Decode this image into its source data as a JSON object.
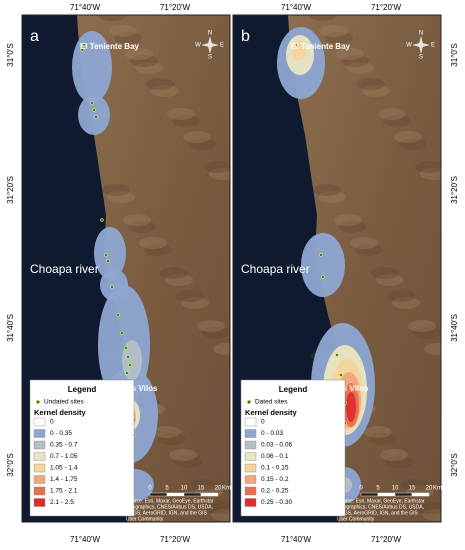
{
  "lon_labels": [
    "71°40'W",
    "71°20'W"
  ],
  "lat_labels": [
    "31°0'S",
    "31°20'S",
    "31°40'S",
    "32°0'S"
  ],
  "compass": {
    "n": "N",
    "s": "S",
    "e": "E",
    "w": "W"
  },
  "places": {
    "bay": "El Teniente Bay",
    "river": "Choapa river",
    "town": "Los Vilos"
  },
  "scale": {
    "ticks": [
      "0",
      "5",
      "10",
      "15",
      "20"
    ],
    "unit": "Km"
  },
  "source": [
    "Source: Esri, Maxar, GeoEye, Earthstar",
    "Geographics, CNES/Airbus DS, USDA,",
    "USGS, AeroGRID, IGN, and the GIS",
    "User Community"
  ],
  "panels": [
    {
      "label": "a",
      "legend": {
        "title": "Legend",
        "sites": "Undated sites",
        "density_title": "Kernel density",
        "classes": [
          {
            "label": "0",
            "color": "#ffffff"
          },
          {
            "label": "0 - 0.35",
            "color": "#8ea6d2"
          },
          {
            "label": "0.35 - 0.7",
            "color": "#b3c0c4"
          },
          {
            "label": "0.7 - 1.05",
            "color": "#e9e6bf"
          },
          {
            "label": "1.05 - 1.4",
            "color": "#f6d49c"
          },
          {
            "label": "1.4 - 1.75",
            "color": "#f2a679"
          },
          {
            "label": "1.75 - 2.1",
            "color": "#e8704f"
          },
          {
            "label": "2.1 - 2.5",
            "color": "#dc2f2c"
          }
        ]
      }
    },
    {
      "label": "b",
      "legend": {
        "title": "Legend",
        "sites": "Dated sites",
        "density_title": "Kernel density",
        "classes": [
          {
            "label": "0",
            "color": "#ffffff"
          },
          {
            "label": "0 - 0.03",
            "color": "#8ea6d2"
          },
          {
            "label": "0.03 - 0.06",
            "color": "#b3c0c4"
          },
          {
            "label": "0.06 - 0.1",
            "color": "#e9e6bf"
          },
          {
            "label": "0.1 - 0.15",
            "color": "#f6d49c"
          },
          {
            "label": "0.15 - 0.2",
            "color": "#f2a679"
          },
          {
            "label": "0.2 - 0.25",
            "color": "#e8704f"
          },
          {
            "label": "0.25 - 0.30",
            "color": "#dc2f2c"
          }
        ]
      }
    }
  ]
}
